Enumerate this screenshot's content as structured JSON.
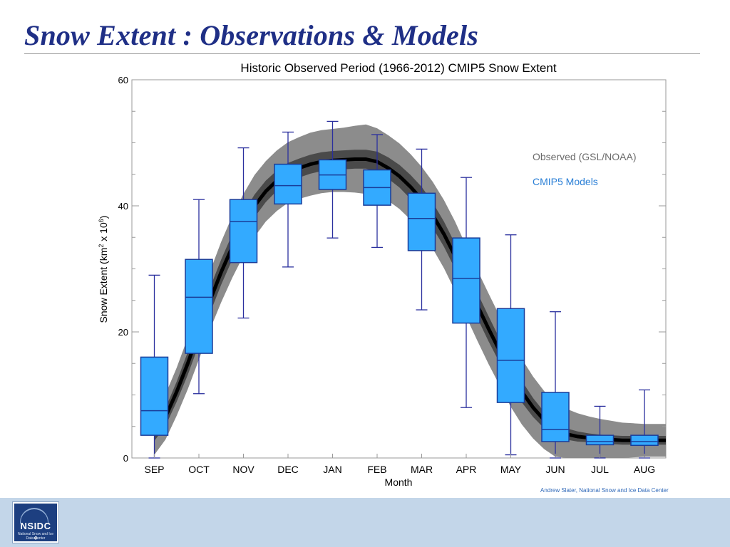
{
  "slide": {
    "title": "Snow Extent : Observations & Models",
    "credit": "Andrew Slater, National Snow and Ice Data Center"
  },
  "logo": {
    "text": "NSIDC",
    "subtext": "National Snow and Ice Data Center",
    "icon": "snowflake-icon"
  },
  "colors": {
    "title": "#1f2f86",
    "box_fill": "#33aaff",
    "box_stroke": "#1a3d99",
    "whisker": "#2a2f9e",
    "envelope_outer": "#8c8c8c",
    "envelope_inner": "#4a4a4a",
    "observed_line": "#000000",
    "legend_observed": "#6b6b6b",
    "legend_models": "#2a7fd6",
    "footer": "#c3d6e9"
  },
  "chart_data": {
    "type": "box",
    "title": "Historic Observed Period (1966-2012) CMIP5 Snow Extent",
    "xlabel": "Month",
    "ylabel": "Snow Extent (km",
    "ylabel_sup1": "2",
    "ylabel_mid": " x 10",
    "ylabel_sup2": "6",
    "ylabel_end": ")",
    "ylim": [
      0,
      60
    ],
    "yticks": [
      0,
      20,
      40,
      60
    ],
    "legend": {
      "position": "upper-right",
      "entries": [
        "Observed (GSL/NOAA)",
        "CMIP5 Models"
      ]
    },
    "categories": [
      "SEP",
      "OCT",
      "NOV",
      "DEC",
      "JAN",
      "FEB",
      "MAR",
      "APR",
      "MAY",
      "JUN",
      "JUL",
      "AUG"
    ],
    "boxes": [
      {
        "min": 0.0,
        "q1": 3.6,
        "median": 7.5,
        "q3": 16.0,
        "max": 29.0
      },
      {
        "min": 10.2,
        "q1": 16.6,
        "median": 25.5,
        "q3": 31.5,
        "max": 41.0
      },
      {
        "min": 22.2,
        "q1": 31.0,
        "median": 37.5,
        "q3": 41.0,
        "max": 49.2
      },
      {
        "min": 30.3,
        "q1": 40.3,
        "median": 43.2,
        "q3": 46.6,
        "max": 51.7
      },
      {
        "min": 34.9,
        "q1": 42.6,
        "median": 44.9,
        "q3": 47.3,
        "max": 53.4
      },
      {
        "min": 33.4,
        "q1": 40.1,
        "median": 42.9,
        "q3": 45.7,
        "max": 51.3
      },
      {
        "min": 23.5,
        "q1": 32.9,
        "median": 38.0,
        "q3": 42.0,
        "max": 49.0
      },
      {
        "min": 8.0,
        "q1": 21.4,
        "median": 28.5,
        "q3": 34.9,
        "max": 44.5
      },
      {
        "min": 0.5,
        "q1": 8.8,
        "median": 15.5,
        "q3": 23.7,
        "max": 35.4
      },
      {
        "min": 0.0,
        "q1": 2.6,
        "median": 4.5,
        "q3": 10.4,
        "max": 23.2
      },
      {
        "min": 0.0,
        "q1": 2.1,
        "median": 2.6,
        "q3": 3.6,
        "max": 8.2
      },
      {
        "min": 0.0,
        "q1": 2.0,
        "median": 2.6,
        "q3": 3.6,
        "max": 10.8
      }
    ],
    "observed": {
      "name": "Observed (GSL/NOAA)",
      "x_month_index": [
        0.0,
        0.25,
        0.5,
        0.75,
        1.0,
        1.25,
        1.5,
        1.75,
        2.0,
        2.25,
        2.5,
        2.75,
        3.0,
        3.25,
        3.5,
        3.75,
        4.0,
        4.25,
        4.5,
        4.75,
        5.0,
        5.25,
        5.5,
        5.75,
        6.0,
        6.25,
        6.5,
        6.75,
        7.0,
        7.25,
        7.5,
        7.75,
        8.0,
        8.25,
        8.5,
        8.75,
        9.0,
        9.25,
        9.5,
        9.75,
        10.0,
        10.25,
        10.5,
        10.75,
        11.0,
        11.25,
        11.5
      ],
      "mean": [
        4.0,
        6.5,
        10.5,
        15.0,
        20.0,
        25.0,
        29.5,
        33.5,
        37.0,
        40.0,
        42.3,
        44.0,
        45.3,
        46.0,
        46.6,
        47.0,
        47.2,
        47.3,
        47.4,
        47.4,
        47.0,
        46.0,
        44.7,
        43.0,
        41.0,
        38.5,
        35.5,
        32.0,
        28.0,
        24.2,
        20.5,
        17.0,
        13.5,
        10.5,
        8.0,
        6.0,
        4.5,
        3.8,
        3.4,
        3.2,
        3.0,
        2.9,
        2.8,
        2.8,
        2.8,
        2.8,
        2.8
      ],
      "inner_band": [
        1.3,
        1.4,
        1.6,
        1.8,
        2.0,
        2.0,
        2.0,
        2.0,
        1.9,
        1.8,
        1.7,
        1.6,
        1.5,
        1.5,
        1.5,
        1.5,
        1.5,
        1.5,
        1.5,
        1.5,
        1.6,
        1.7,
        1.8,
        1.9,
        2.0,
        2.0,
        2.0,
        2.0,
        2.0,
        2.0,
        2.0,
        1.9,
        1.8,
        1.7,
        1.5,
        1.3,
        1.1,
        0.9,
        0.8,
        0.7,
        0.7,
        0.7,
        0.7,
        0.7,
        0.7,
        0.7,
        0.7
      ],
      "outer_band": [
        3.5,
        3.6,
        3.8,
        4.1,
        4.4,
        4.6,
        4.8,
        4.9,
        4.9,
        4.9,
        4.8,
        4.8,
        4.8,
        4.9,
        5.0,
        5.0,
        5.0,
        5.1,
        5.3,
        5.5,
        5.3,
        5.2,
        5.2,
        5.2,
        5.2,
        5.3,
        5.4,
        5.5,
        5.6,
        5.6,
        5.6,
        5.5,
        5.4,
        5.2,
        4.9,
        4.6,
        4.3,
        4.0,
        3.7,
        3.4,
        3.2,
        3.0,
        2.8,
        2.7,
        2.6,
        2.6,
        2.6
      ]
    }
  }
}
